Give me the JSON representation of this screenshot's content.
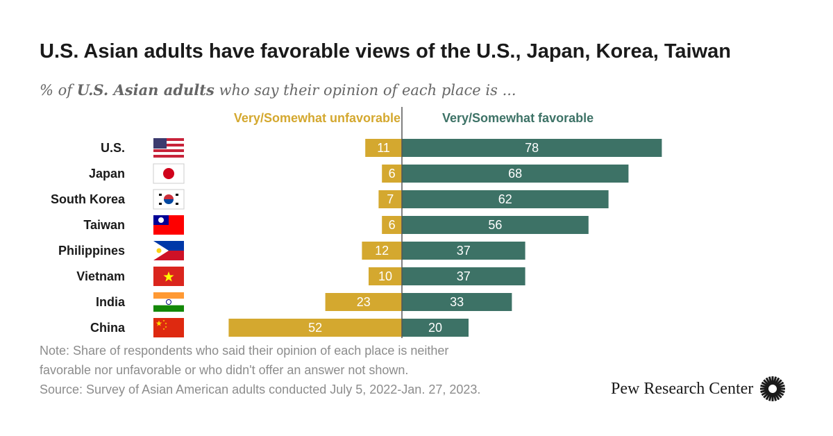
{
  "header": {
    "title": "U.S. Asian adults have favorable views of the U.S., Japan, Korea, Taiwan",
    "subtitle_prefix": "% of ",
    "subtitle_bold": "U.S. Asian adults",
    "subtitle_suffix": " who say their opinion of each place is ..."
  },
  "chart_data": {
    "type": "bar",
    "orientation": "horizontal-diverging",
    "categories": [
      "U.S.",
      "Japan",
      "South Korea",
      "Taiwan",
      "Philippines",
      "Vietnam",
      "India",
      "China"
    ],
    "flag_icons": [
      "us-flag-icon",
      "japan-flag-icon",
      "south-korea-flag-icon",
      "taiwan-flag-icon",
      "philippines-flag-icon",
      "vietnam-flag-icon",
      "india-flag-icon",
      "china-flag-icon"
    ],
    "series": [
      {
        "name": "Very/Somewhat unfavorable",
        "values": [
          11,
          6,
          7,
          6,
          12,
          10,
          23,
          52
        ],
        "color": "#d4a82f"
      },
      {
        "name": "Very/Somewhat favorable",
        "values": [
          78,
          68,
          62,
          56,
          37,
          37,
          33,
          20
        ],
        "color": "#3d7266"
      }
    ],
    "title": "U.S. Asian adults have favorable views of the U.S., Japan, Korea, Taiwan",
    "xlabel": "",
    "ylabel": "",
    "legend": "top",
    "grid": false
  },
  "footer": {
    "note_line1": "Note: Share of respondents who said their opinion of each place is neither",
    "note_line2": "favorable nor unfavorable or who didn't offer an answer not shown.",
    "source": "Source: Survey of Asian American adults conducted July 5, 2022-Jan. 27, 2023.",
    "brand": "Pew Research Center"
  }
}
